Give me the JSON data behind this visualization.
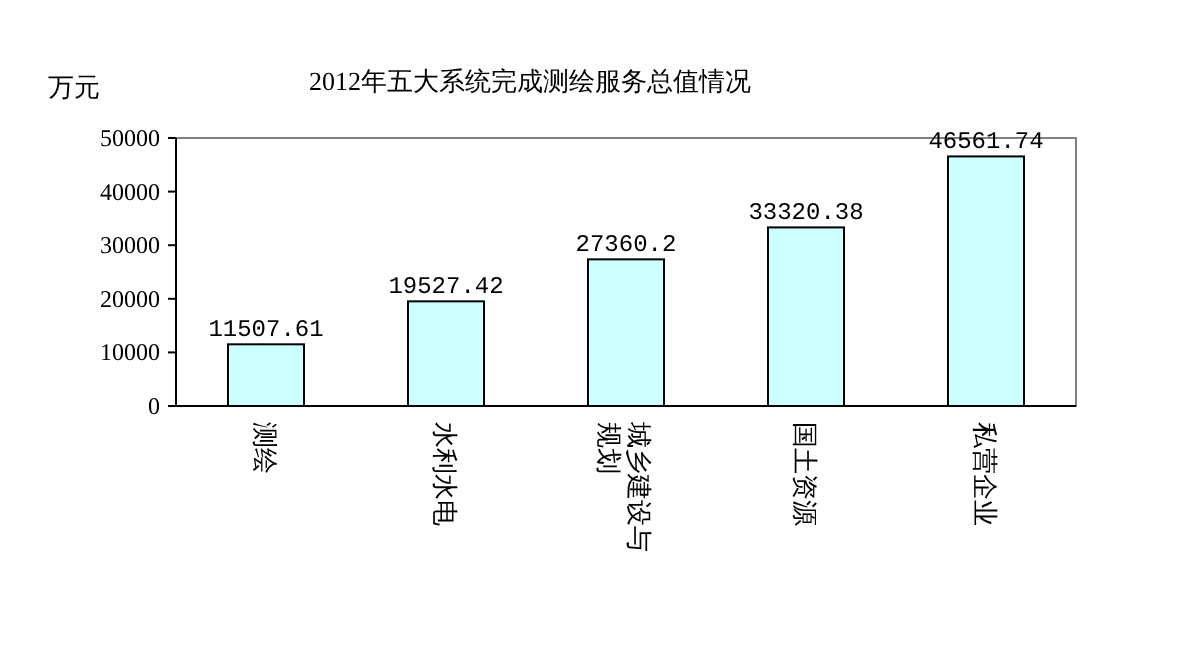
{
  "chart_data": {
    "type": "bar",
    "title": "2012年五大系统完成测绘服务总值情况",
    "ylabel": "万元",
    "categories": [
      "测绘",
      "水利水电",
      "城乡建设与规划",
      "国土资源",
      "私营企业"
    ],
    "values": [
      11507.61,
      19527.42,
      27360.2,
      33320.38,
      46561.74
    ],
    "color": "#ccffff",
    "ylim": [
      0,
      50000
    ],
    "yticks": [
      0,
      10000,
      20000,
      30000,
      40000,
      50000
    ],
    "data_labels": true
  }
}
